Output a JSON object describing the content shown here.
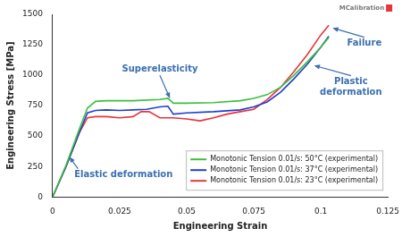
{
  "chart_data": {
    "type": "line",
    "watermark": "MCalibration",
    "x_label": "Engineering Strain",
    "y_label": "Engineering Stress [MPa]",
    "xlim": [
      0,
      0.125
    ],
    "xticks": [
      0,
      0.025,
      0.05,
      0.075,
      0.1,
      0.125
    ],
    "ylim": [
      0,
      1500
    ],
    "yticks": [
      0,
      250,
      500,
      750,
      1000,
      1250,
      1500
    ],
    "grid": false,
    "legend": "lower right",
    "annotations": [
      "Superelasticity",
      "Plastic deformation",
      "Failure",
      "Elastic deformation"
    ],
    "series": [
      {
        "name": "Monotonic Tension 0.01/s: 50°C (experimental)",
        "color": "#3dbf3d",
        "x": [
          0,
          0.005,
          0.01,
          0.013,
          0.016,
          0.02,
          0.03,
          0.04,
          0.043,
          0.045,
          0.05,
          0.06,
          0.07,
          0.075,
          0.08,
          0.085,
          0.09,
          0.095,
          0.1,
          0.103
        ],
        "values": [
          0,
          260,
          560,
          730,
          785,
          790,
          790,
          800,
          810,
          770,
          770,
          775,
          790,
          810,
          840,
          900,
          1000,
          1110,
          1230,
          1310
        ]
      },
      {
        "name": "Monotonic Tension 0.01/s: 37°C (experimental)",
        "color": "#1f3fd0",
        "x": [
          0,
          0.005,
          0.01,
          0.013,
          0.016,
          0.02,
          0.025,
          0.03,
          0.035,
          0.04,
          0.043,
          0.045,
          0.05,
          0.06,
          0.07,
          0.075,
          0.08,
          0.085,
          0.09,
          0.095,
          0.1,
          0.103
        ],
        "values": [
          0,
          250,
          530,
          690,
          710,
          715,
          710,
          715,
          720,
          740,
          745,
          680,
          690,
          700,
          715,
          740,
          780,
          860,
          970,
          1090,
          1230,
          1320
        ]
      },
      {
        "name": "Monotonic Tension 0.01/s: 23°C (experimental)",
        "color": "#e8343a",
        "x": [
          0,
          0.005,
          0.01,
          0.013,
          0.016,
          0.02,
          0.025,
          0.03,
          0.033,
          0.036,
          0.04,
          0.045,
          0.05,
          0.055,
          0.06,
          0.065,
          0.07,
          0.075,
          0.08,
          0.085,
          0.09,
          0.095,
          0.1,
          0.103
        ],
        "values": [
          0,
          250,
          530,
          650,
          660,
          660,
          650,
          660,
          700,
          700,
          650,
          650,
          640,
          625,
          650,
          680,
          700,
          720,
          800,
          900,
          1030,
          1170,
          1330,
          1410
        ]
      }
    ]
  }
}
